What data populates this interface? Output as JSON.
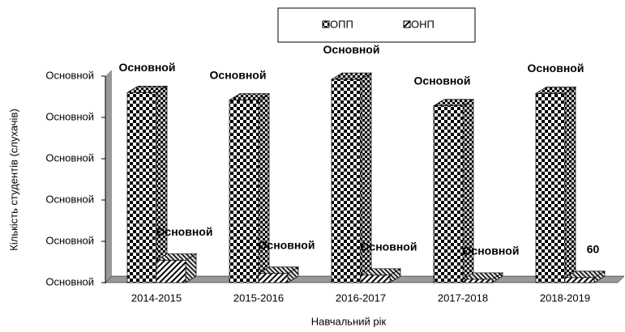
{
  "chart_data": {
    "type": "bar3d",
    "x_label": "Навчальний рік",
    "y_label": "Кількість студентів (слухачів)",
    "categories": [
      "2014-2015",
      "2015-2016",
      "2016-2017",
      "2017-2018",
      "2018-2019"
    ],
    "series": [
      {
        "name": "ОПП",
        "pattern": "checker",
        "values": [
          2300,
          2210,
          2460,
          2140,
          2290
        ],
        "value_labels": [
          "Основной",
          "Основной",
          "Основной",
          "Основной",
          "Основной"
        ]
      },
      {
        "name": "ОНП",
        "pattern": "hatch",
        "values": [
          270,
          110,
          90,
          40,
          60
        ],
        "value_labels": [
          "Основной",
          "Основной",
          "Основной",
          "Основной",
          "60"
        ]
      }
    ],
    "ylim": [
      0,
      2500
    ],
    "yticks": [
      {
        "value": 0,
        "label": "Основной"
      },
      {
        "value": 500,
        "label": "Основной"
      },
      {
        "value": 1000,
        "label": "Основной"
      },
      {
        "value": 1500,
        "label": "Основной"
      },
      {
        "value": 2000,
        "label": "Основной"
      },
      {
        "value": 2500,
        "label": "Основной"
      }
    ],
    "legend": "top"
  }
}
